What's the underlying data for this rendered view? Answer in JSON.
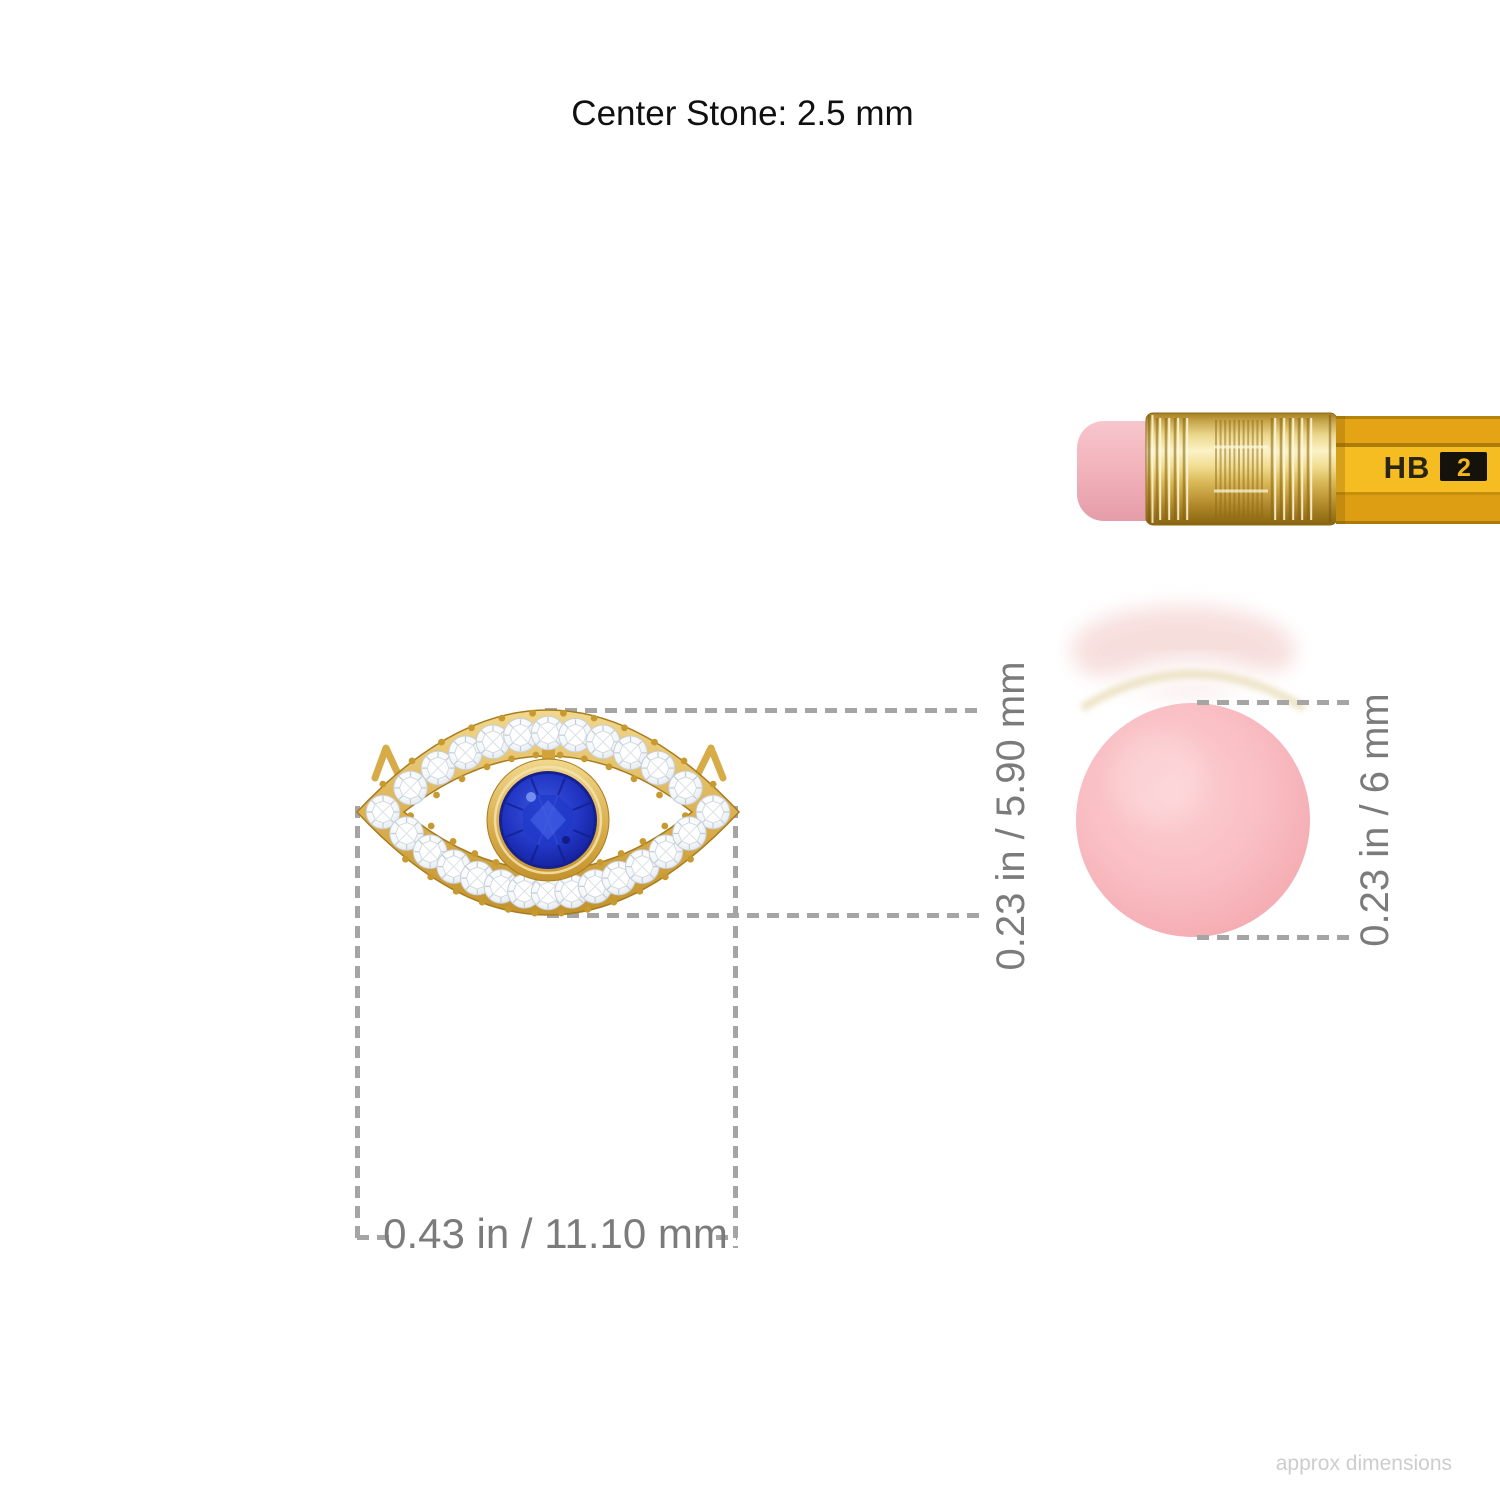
{
  "header": {
    "title": "Center Stone: 2.5 mm"
  },
  "pendant": {
    "width_label": "0.43 in / 11.10 mm",
    "height_label": "0.23 in / 5.90 mm",
    "colors": {
      "gold": "#d9ab45",
      "sapphire": "#1f2fb0",
      "diamond": "#eef2f6"
    }
  },
  "pencil": {
    "grade": "HB",
    "grade_number": "2",
    "eraser_height_label": "0.23 in / 6 mm",
    "colors": {
      "body": "#f2b71e",
      "eraser": "#f3b4bd",
      "ferrule": "#e7cb79"
    }
  },
  "footer": {
    "note": "approx dimensions"
  },
  "style": {
    "dimension_text": "#7b7b7b",
    "dimension_line": "#a5a5a5"
  }
}
